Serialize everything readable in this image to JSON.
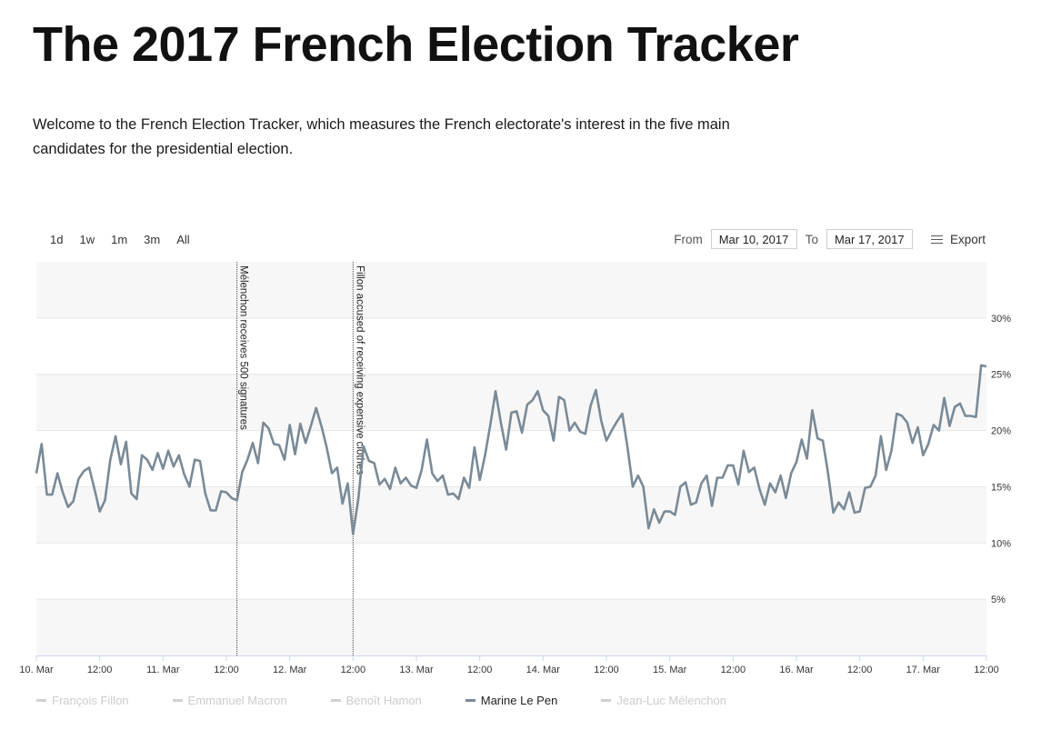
{
  "page": {
    "title": "The 2017 French Election Tracker",
    "intro": "Welcome to the French Election Tracker, which measures the French electorate's interest in the five main candidates for the presidential election."
  },
  "controls": {
    "ranges": [
      "1d",
      "1w",
      "1m",
      "3m",
      "All"
    ],
    "from_label": "From",
    "from_value": "Mar 10, 2017",
    "to_label": "To",
    "to_value": "Mar 17, 2017",
    "export_label": "Export"
  },
  "colors": {
    "line": "#7a8a97",
    "inactive": "#d0d0d0",
    "band": "#f7f7f7",
    "grid": "#e6e6e6",
    "axis": "#ccd6eb"
  },
  "chart_data": {
    "type": "line",
    "x_tick_labels": [
      "10. Mar",
      "12:00",
      "11. Mar",
      "12:00",
      "12. Mar",
      "12:00",
      "13. Mar",
      "12:00",
      "14. Mar",
      "12:00",
      "15. Mar",
      "12:00",
      "16. Mar",
      "12:00",
      "17. Mar",
      "12:00"
    ],
    "x_unit": "hours since Mar 10, 2017 00:00",
    "xlim": [
      0,
      180
    ],
    "ylim": [
      0,
      35
    ],
    "y_tick_values": [
      5,
      10,
      15,
      20,
      25,
      30
    ],
    "y_tick_labels": [
      "5%",
      "10%",
      "15%",
      "20%",
      "25%",
      "30%"
    ],
    "annotations": [
      {
        "x": 38,
        "text": "Mélenchon receives 500 signatures"
      },
      {
        "x": 60,
        "text": "Fillon accused of receiving expensive clothes"
      }
    ],
    "legend": [
      {
        "name": "François Fillon",
        "active": false
      },
      {
        "name": "Emmanuel Macron",
        "active": false
      },
      {
        "name": "Benoît Hamon",
        "active": false
      },
      {
        "name": "Marine Le Pen",
        "active": true
      },
      {
        "name": "Jean-Luc Mélenchon",
        "active": false
      }
    ],
    "series": [
      {
        "name": "Marine Le Pen",
        "x": [
          0,
          1,
          2,
          3,
          4,
          5,
          6,
          7,
          8,
          9,
          10,
          11,
          12,
          13,
          14,
          15,
          16,
          17,
          18,
          19,
          20,
          21,
          22,
          23,
          24,
          25,
          26,
          27,
          28,
          29,
          30,
          31,
          32,
          33,
          34,
          35,
          36,
          37,
          38,
          39,
          40,
          41,
          42,
          43,
          44,
          45,
          46,
          47,
          48,
          49,
          50,
          51,
          52,
          53,
          54,
          55,
          56,
          57,
          58,
          59,
          60,
          61,
          62,
          63,
          64,
          65,
          66,
          67,
          68,
          69,
          70,
          71,
          72,
          73,
          74,
          75,
          76,
          77,
          78,
          79,
          80,
          81,
          82,
          83,
          84,
          85,
          86,
          87,
          88,
          89,
          90,
          91,
          92,
          93,
          94,
          95,
          96,
          97,
          98,
          99,
          100,
          101,
          102,
          103,
          104,
          105,
          106,
          107,
          108,
          109,
          110,
          111,
          112,
          113,
          114,
          115,
          116,
          117,
          118,
          119,
          120,
          121,
          122,
          123,
          124,
          125,
          126,
          127,
          128,
          129,
          130,
          131,
          132,
          133,
          134,
          135,
          136,
          137,
          138,
          139,
          140,
          141,
          142,
          143,
          144,
          145,
          146,
          147,
          148,
          149,
          150,
          151,
          152,
          153,
          154,
          155,
          156,
          157,
          158,
          159,
          160,
          161,
          162,
          163,
          164,
          165,
          166,
          167,
          168,
          169,
          170,
          171,
          172,
          173,
          174,
          175,
          176,
          177,
          178,
          179,
          180
        ],
        "y": [
          16.2,
          18.8,
          14.3,
          14.3,
          16.2,
          14.5,
          13.2,
          13.7,
          15.7,
          16.4,
          16.7,
          14.8,
          12.8,
          13.8,
          17.4,
          19.5,
          17.0,
          19.0,
          14.4,
          13.9,
          17.8,
          17.4,
          16.5,
          18.0,
          16.6,
          18.2,
          16.8,
          17.8,
          16.1,
          15.0,
          17.4,
          17.3,
          14.4,
          12.9,
          12.9,
          14.6,
          14.5,
          14.0,
          13.8,
          16.3,
          17.4,
          18.9,
          17.1,
          20.7,
          20.2,
          18.8,
          18.7,
          17.4,
          20.5,
          17.9,
          20.6,
          18.9,
          20.4,
          22.0,
          20.4,
          18.5,
          16.2,
          16.7,
          13.5,
          15.3,
          10.8,
          13.9,
          18.6,
          17.3,
          17.1,
          15.2,
          15.7,
          14.8,
          16.7,
          15.3,
          15.8,
          15.1,
          14.9,
          16.5,
          19.2,
          16.2,
          15.5,
          16.0,
          14.3,
          14.4,
          13.9,
          15.8,
          14.9,
          18.5,
          15.6,
          17.8,
          20.5,
          23.5,
          20.7,
          18.3,
          21.6,
          21.7,
          19.8,
          22.3,
          22.7,
          23.5,
          21.8,
          21.3,
          19.1,
          23.0,
          22.7,
          20.0,
          20.7,
          19.9,
          19.7,
          22.2,
          23.6,
          20.9,
          19.1,
          20.0,
          20.8,
          21.5,
          18.5,
          15.0,
          16.0,
          15.0,
          11.3,
          13.0,
          11.8,
          12.8,
          12.8,
          12.5,
          15.0,
          15.4,
          13.4,
          13.6,
          15.3,
          16.0,
          13.3,
          15.8,
          15.8,
          16.9,
          16.9,
          15.2,
          18.2,
          16.3,
          16.7,
          14.8,
          13.4,
          15.3,
          14.5,
          16.0,
          14.0,
          16.2,
          17.2,
          19.2,
          17.5,
          21.8,
          19.3,
          19.1,
          16.2,
          12.7,
          13.6,
          13.0,
          14.5,
          12.7,
          12.8,
          14.9,
          15.0,
          16.0,
          19.5,
          16.5,
          18.2,
          21.5,
          21.3,
          20.7,
          18.9,
          20.3,
          17.8,
          18.8,
          20.5,
          20.0,
          22.9,
          20.4,
          22.1,
          22.4,
          21.3,
          21.3,
          21.2,
          25.8,
          25.7
        ]
      }
    ]
  }
}
